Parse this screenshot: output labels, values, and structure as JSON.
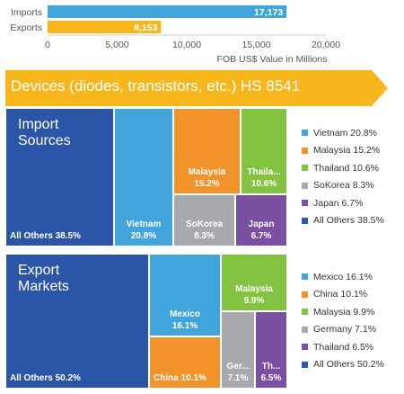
{
  "chart_data": [
    {
      "type": "bar",
      "orientation": "horizontal",
      "categories": [
        "Imports",
        "Exports"
      ],
      "values": [
        17173,
        8153
      ],
      "value_labels": [
        "17,173",
        "8,153"
      ],
      "colors": [
        "#41a5dc",
        "#f7b61c"
      ],
      "xlabel": "FOB US$ Value in Millions",
      "xlim": [
        0,
        20000
      ],
      "xticks": [
        "0",
        "5,000",
        "10,000",
        "15,000",
        "20,000"
      ]
    },
    {
      "type": "treemap",
      "title": "Import Sources",
      "items": [
        {
          "name": "All Others",
          "value": 38.5,
          "label": "All Others 38.5%",
          "color": "#2b55a6"
        },
        {
          "name": "Vietnam",
          "value": 20.8,
          "label": "Vietnam\n20.8%",
          "color": "#41a5dc"
        },
        {
          "name": "Malaysia",
          "value": 15.2,
          "label": "Malaysia\n15.2%",
          "color": "#f2922a"
        },
        {
          "name": "Thailand",
          "value": 10.6,
          "label": "Thaila...\n10.6%",
          "color": "#84c341"
        },
        {
          "name": "SoKorea",
          "value": 8.3,
          "label": "SoKorea\n8.3%",
          "color": "#a7a9ac"
        },
        {
          "name": "Japan",
          "value": 6.7,
          "label": "Japan\n6.7%",
          "color": "#7b50a3"
        }
      ],
      "legend": [
        "Vietnam 20.8%",
        "Malaysia 15.2%",
        "Thailand 10.6%",
        "SoKorea 8.3%",
        "Japan 6.7%",
        "All Others 38.5%"
      ],
      "legend_colors": [
        "#41a5dc",
        "#f2922a",
        "#84c341",
        "#a7a9ac",
        "#7b50a3",
        "#2b55a6"
      ],
      "legend_position": "right"
    },
    {
      "type": "treemap",
      "title": "Export Markets",
      "items": [
        {
          "name": "All Others",
          "value": 50.2,
          "label": "All Others 50.2%",
          "color": "#2b55a6"
        },
        {
          "name": "Mexico",
          "value": 16.1,
          "label": "Mexico\n16.1%",
          "color": "#41a5dc"
        },
        {
          "name": "China",
          "value": 10.1,
          "label": "China 10.1%",
          "color": "#f2922a"
        },
        {
          "name": "Malaysia",
          "value": 9.9,
          "label": "Malaysia\n9.9%",
          "color": "#84c341"
        },
        {
          "name": "Germany",
          "value": 7.1,
          "label": "Ger...\n7.1%",
          "color": "#a7a9ac"
        },
        {
          "name": "Thailand",
          "value": 6.5,
          "label": "Th...\n6.5%",
          "color": "#7b50a3"
        }
      ],
      "legend": [
        "Mexico 16.1%",
        "China 10.1%",
        "Malaysia 9.9%",
        "Germany 7.1%",
        "Thailand 6.5%",
        "All Others 50.2%"
      ],
      "legend_colors": [
        "#41a5dc",
        "#f2922a",
        "#84c341",
        "#a7a9ac",
        "#7b50a3",
        "#2b55a6"
      ],
      "legend_position": "right"
    }
  ],
  "banner": {
    "title": "Devices (diodes, transistors, etc.) HS 8541",
    "color": "#f7b61c"
  }
}
